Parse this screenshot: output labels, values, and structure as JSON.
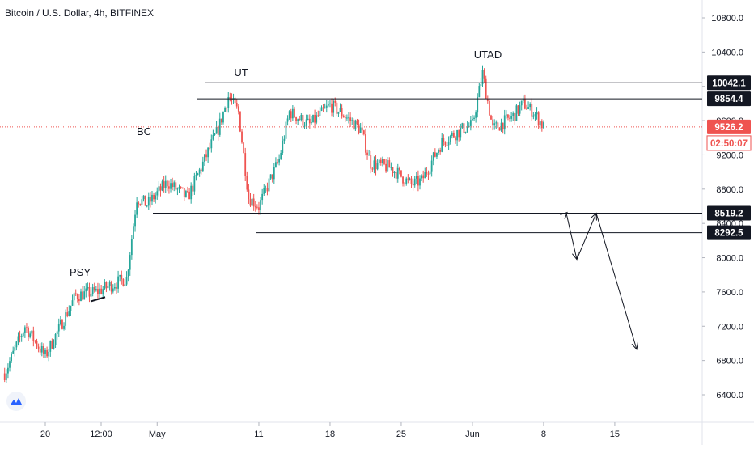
{
  "chart_data": {
    "type": "candlestick",
    "title": "Bitcoin / U.S. Dollar, 4h, BITFINEX",
    "y_axis": {
      "ticks": [
        6400,
        6800,
        7200,
        7600,
        8000,
        8400,
        8800,
        9200,
        9600,
        10000,
        10400,
        10800
      ],
      "tick_labels": [
        "6400.0",
        "6800.0",
        "7200.0",
        "7600.0",
        "8000.0",
        "8400.0",
        "8800.0",
        "9200.0",
        "9600.0",
        "10000.0",
        "10400.0",
        "10800.0"
      ],
      "range": [
        6150,
        11000
      ],
      "position": "right"
    },
    "x_axis": {
      "tick_labels": [
        "20",
        "12:00",
        "May",
        "11",
        "18",
        "25",
        "Jun",
        "8",
        "15"
      ]
    },
    "price_labels": [
      {
        "text": "10042.1",
        "value": 10042.1
      },
      {
        "text": "9854.4",
        "value": 9854.4
      },
      {
        "text": "9526.2",
        "value": 9526.2,
        "current": true
      },
      {
        "text": "02:50:07",
        "countdown": true
      },
      {
        "text": "8519.2",
        "value": 8519.2
      },
      {
        "text": "8292.5",
        "value": 8292.5
      }
    ],
    "wyckoff_labels": [
      {
        "text": "PSY",
        "value": 7790
      },
      {
        "text": "BC",
        "value": 9430
      },
      {
        "text": "UT",
        "value": 10120
      },
      {
        "text": "UTAD",
        "value": 10330
      }
    ],
    "horizontal_levels": [
      {
        "value": 10042.1
      },
      {
        "value": 9854.4
      },
      {
        "value": 8519.2
      },
      {
        "value": 8292.5
      }
    ],
    "current_price": 9526.2,
    "anchor_points": [
      {
        "date": "2020-04-16",
        "close": 6650
      },
      {
        "date": "2020-04-18",
        "close": 7200
      },
      {
        "date": "2020-04-20",
        "close": 6850
      },
      {
        "date": "2020-04-23",
        "close": 7560
      },
      {
        "date": "2020-04-25",
        "close": 7600
      },
      {
        "date": "2020-04-28",
        "close": 7760
      },
      {
        "date": "2020-04-29",
        "close": 8700
      },
      {
        "date": "2020-04-30",
        "close": 8620
      },
      {
        "date": "2020-05-02",
        "close": 8880
      },
      {
        "date": "2020-05-04",
        "close": 8700
      },
      {
        "date": "2020-05-07",
        "close": 9500
      },
      {
        "date": "2020-05-08",
        "close": 9880
      },
      {
        "date": "2020-05-09",
        "close": 9700
      },
      {
        "date": "2020-05-10",
        "close": 8700
      },
      {
        "date": "2020-05-11",
        "close": 8600
      },
      {
        "date": "2020-05-13",
        "close": 9150
      },
      {
        "date": "2020-05-14",
        "close": 9700
      },
      {
        "date": "2020-05-16",
        "close": 9550
      },
      {
        "date": "2020-05-18",
        "close": 9780
      },
      {
        "date": "2020-05-19",
        "close": 9700
      },
      {
        "date": "2020-05-21",
        "close": 9500
      },
      {
        "date": "2020-05-22",
        "close": 9100
      },
      {
        "date": "2020-05-24",
        "close": 9050
      },
      {
        "date": "2020-05-26",
        "close": 8850
      },
      {
        "date": "2020-05-27",
        "close": 8900
      },
      {
        "date": "2020-05-29",
        "close": 9350
      },
      {
        "date": "2020-05-31",
        "close": 9500
      },
      {
        "date": "2020-06-01",
        "close": 9550
      },
      {
        "date": "2020-06-02",
        "close": 10150
      },
      {
        "date": "2020-06-03",
        "close": 9500
      },
      {
        "date": "2020-06-05",
        "close": 9650
      },
      {
        "date": "2020-06-06",
        "close": 9800
      },
      {
        "date": "2020-06-07",
        "close": 9700
      },
      {
        "date": "2020-06-08",
        "close": 9526.2
      }
    ],
    "projection_path": [
      {
        "date": "2020-06-08",
        "value": 8519
      },
      {
        "date": "2020-06-09",
        "value": 7980
      },
      {
        "date": "2020-06-11",
        "value": 8519
      },
      {
        "date": "2020-06-15",
        "value": 6930
      }
    ],
    "colors": {
      "up": "#26a69a",
      "down": "#ef5350",
      "level_line": "#131722",
      "current_price": "#ef5350",
      "label_bg": "#131722"
    }
  }
}
